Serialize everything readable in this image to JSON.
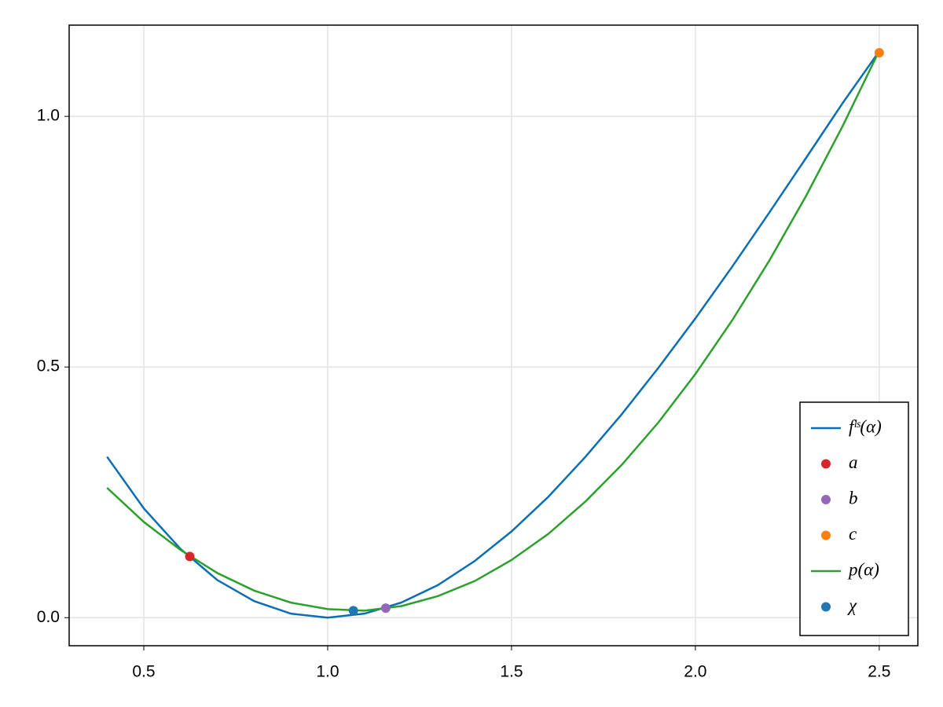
{
  "chart_data": {
    "type": "line",
    "x": [
      0.4,
      0.5,
      0.6,
      0.7,
      0.8,
      0.9,
      1.0,
      1.1,
      1.2,
      1.3,
      1.4,
      1.5,
      1.6,
      1.7,
      1.8,
      1.9,
      2.0,
      2.1,
      2.2,
      2.3,
      2.4,
      2.5
    ],
    "series": [
      {
        "name": "fˡˢ(α)",
        "type": "line",
        "color": "#0a6eb4",
        "values": [
          0.321,
          0.218,
          0.137,
          0.075,
          0.033,
          0.008,
          0,
          0.008,
          0.03,
          0.065,
          0.113,
          0.172,
          0.241,
          0.32,
          0.406,
          0.499,
          0.597,
          0.7,
          0.807,
          0.916,
          1.026,
          1.13
        ]
      },
      {
        "name": "a",
        "type": "scatter",
        "color": "#d62728",
        "x": [
          0.625
        ],
        "values": [
          0.122
        ]
      },
      {
        "name": "b",
        "type": "scatter",
        "color": "#9467bd",
        "x": [
          1.158
        ],
        "values": [
          0.019
        ]
      },
      {
        "name": "c",
        "type": "scatter",
        "color": "#ff7f0e",
        "x": [
          2.5
        ],
        "values": [
          1.127
        ]
      },
      {
        "name": "p(α)",
        "type": "line",
        "color": "#2ca02c",
        "values": [
          0.259,
          0.191,
          0.135,
          0.089,
          0.054,
          0.03,
          0.017,
          0.014,
          0.023,
          0.043,
          0.073,
          0.115,
          0.167,
          0.231,
          0.305,
          0.39,
          0.486,
          0.593,
          0.711,
          0.84,
          0.98,
          1.131
        ]
      },
      {
        "name": "χ",
        "type": "scatter",
        "color": "#1f77b4",
        "x": [
          1.07
        ],
        "values": [
          0.014
        ]
      }
    ],
    "xlim": [
      0.297,
      2.605
    ],
    "xticks": [
      0.5,
      {
        "value": 1.0,
        "label": "1.0"
      },
      1.5,
      {
        "value": 2.0,
        "label": "2.0"
      },
      2.5
    ],
    "ylim": [
      -0.056,
      1.182
    ],
    "yticks": [
      {
        "value": 0.0,
        "label": "0.0"
      },
      0.5,
      {
        "value": 1.0,
        "label": "1.0"
      }
    ],
    "grid": true,
    "legend": "bottom-right"
  }
}
